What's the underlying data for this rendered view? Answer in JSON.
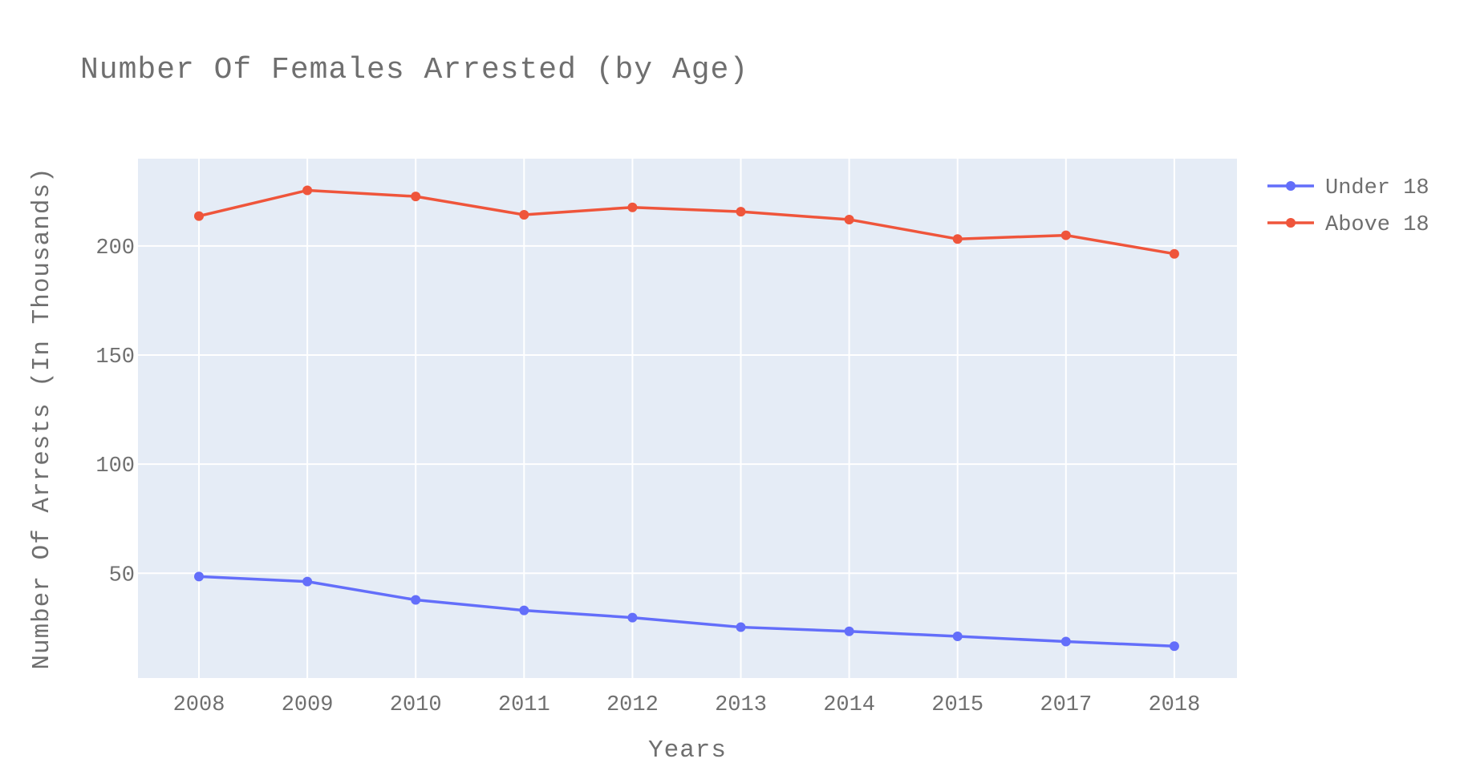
{
  "chart_data": {
    "type": "line",
    "title": "Number Of Females Arrested (by Age)",
    "xlabel": "Years",
    "ylabel": "Number Of Arrests (In Thousands)",
    "categories": [
      "2008",
      "2009",
      "2010",
      "2011",
      "2012",
      "2013",
      "2014",
      "2015",
      "2017",
      "2018"
    ],
    "ylim": [
      2,
      240
    ],
    "yticks": [
      50,
      100,
      150,
      200
    ],
    "grid": true,
    "legend_position": "top-right",
    "series": [
      {
        "name": "Under 18",
        "color": "#636efa",
        "values": [
          48.5,
          46.2,
          37.8,
          33.0,
          29.7,
          25.3,
          23.4,
          21.1,
          18.7,
          16.6
        ]
      },
      {
        "name": "Above 18",
        "color": "#ef553b",
        "values": [
          213.7,
          225.5,
          222.7,
          214.3,
          217.7,
          215.7,
          212.1,
          203.2,
          204.9,
          196.4
        ]
      }
    ]
  }
}
